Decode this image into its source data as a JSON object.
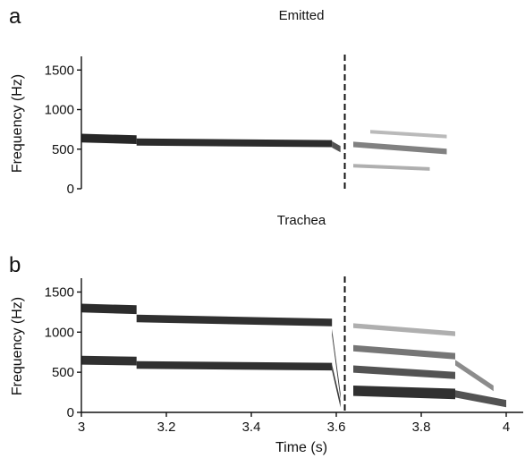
{
  "figure": {
    "panel_a_letter": "a",
    "panel_b_letter": "b"
  },
  "chart_data": [
    {
      "type": "heatmap",
      "subtype": "spectrogram",
      "title": "Emitted",
      "xlabel": "",
      "ylabel": "Frequency (Hz)",
      "xlim": [
        3.0,
        4.04
      ],
      "ylim": [
        0,
        1650
      ],
      "yticks": [
        0,
        500,
        1000,
        1500
      ],
      "ytick_labels": [
        "0",
        "500",
        "1000",
        "1500"
      ],
      "marker_time": 3.62,
      "grid": false,
      "bands": [
        {
          "name": "",
          "t0": 3.0,
          "t1": 3.13,
          "f0": 640,
          "f1": 620,
          "w": 110,
          "opacity": 0.94
        },
        {
          "name": "",
          "t0": 3.13,
          "t1": 3.59,
          "f0": 590,
          "f1": 570,
          "w": 90,
          "opacity": 0.92
        },
        {
          "name": "",
          "t0": 3.59,
          "t1": 3.61,
          "f0": 560,
          "f1": 500,
          "w": 80,
          "opacity": 0.75
        },
        {
          "name": "",
          "t0": 3.64,
          "t1": 3.86,
          "f0": 560,
          "f1": 470,
          "w": 70,
          "opacity": 0.55
        },
        {
          "name": "",
          "t0": 3.68,
          "t1": 3.86,
          "f0": 720,
          "f1": 660,
          "w": 45,
          "opacity": 0.3
        },
        {
          "name": "",
          "t0": 3.64,
          "t1": 3.82,
          "f0": 290,
          "f1": 250,
          "w": 45,
          "opacity": 0.35
        }
      ]
    },
    {
      "type": "heatmap",
      "subtype": "spectrogram",
      "title": "Trachea",
      "xlabel": "Time (s)",
      "ylabel": "Frequency (Hz)",
      "xlim": [
        3.0,
        4.04
      ],
      "ylim": [
        0,
        1650
      ],
      "xticks": [
        3.0,
        3.2,
        3.4,
        3.6,
        3.8,
        4.0
      ],
      "xtick_labels": [
        "3",
        "3.2",
        "3.4",
        "3.6",
        "3.8",
        "4"
      ],
      "yticks": [
        0,
        500,
        1000,
        1500
      ],
      "ytick_labels": [
        "0",
        "500",
        "1000",
        "1500"
      ],
      "marker_time": 3.62,
      "grid": false,
      "bands": [
        {
          "name": "",
          "t0": 3.0,
          "t1": 3.13,
          "f0": 1300,
          "f1": 1280,
          "w": 110,
          "opacity": 0.92
        },
        {
          "name": "",
          "t0": 3.13,
          "t1": 3.59,
          "f0": 1170,
          "f1": 1120,
          "w": 95,
          "opacity": 0.9
        },
        {
          "name": "",
          "t0": 3.59,
          "t1": 3.61,
          "f0": 1000,
          "f1": 200,
          "w": 80,
          "opacity": 0.85
        },
        {
          "name": "",
          "t0": 3.0,
          "t1": 3.13,
          "f0": 650,
          "f1": 640,
          "w": 110,
          "opacity": 0.9
        },
        {
          "name": "",
          "t0": 3.13,
          "t1": 3.59,
          "f0": 590,
          "f1": 570,
          "w": 95,
          "opacity": 0.9
        },
        {
          "name": "",
          "t0": 3.59,
          "t1": 3.61,
          "f0": 560,
          "f1": 100,
          "w": 80,
          "opacity": 0.85
        },
        {
          "name": "",
          "t0": 3.64,
          "t1": 3.88,
          "f0": 1080,
          "f1": 980,
          "w": 60,
          "opacity": 0.35
        },
        {
          "name": "",
          "t0": 3.64,
          "t1": 3.88,
          "f0": 800,
          "f1": 700,
          "w": 80,
          "opacity": 0.6
        },
        {
          "name": "",
          "t0": 3.64,
          "t1": 3.88,
          "f0": 540,
          "f1": 460,
          "w": 90,
          "opacity": 0.75
        },
        {
          "name": "",
          "t0": 3.64,
          "t1": 3.88,
          "f0": 270,
          "f1": 230,
          "w": 130,
          "opacity": 0.9
        },
        {
          "name": "",
          "t0": 3.88,
          "t1": 3.97,
          "f0": 620,
          "f1": 300,
          "w": 70,
          "opacity": 0.5
        },
        {
          "name": "",
          "t0": 3.88,
          "t1": 4.0,
          "f0": 230,
          "f1": 110,
          "w": 90,
          "opacity": 0.75
        }
      ]
    }
  ]
}
